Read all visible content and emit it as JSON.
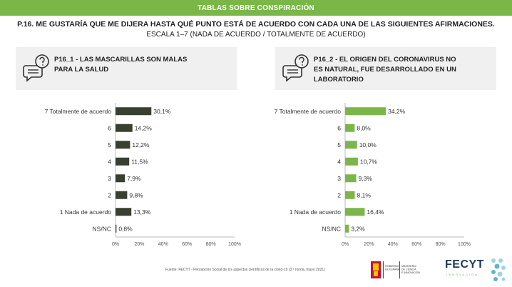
{
  "header": {
    "title": "TABLAS SOBRE CONSPIRACIÓN"
  },
  "question": {
    "text": "P.16. ME GUSTARÍA QUE ME DIJERA HASTA QUÉ PUNTO ESTÁ DE ACUERDO CON CADA UNA DE LAS SIGUIENTES AFIRMACIONES.",
    "scale": "ESCALA 1–7 (NADA DE ACUERDO / TOTALMENTE DE ACUERDO)"
  },
  "panels": [
    {
      "line1": "P16_1 -  LAS MASCARILLAS SON MALAS",
      "line2": "PARA LA SALUD",
      "line3": ""
    },
    {
      "line1": "P16_2 -  EL ORIGEN DEL CORONAVIRUS NO",
      "line2": "ES NATURAL, FUE DESARROLLADO EN UN",
      "line3": "LABORATORIO"
    }
  ],
  "colors": {
    "accent": "#7ab648",
    "dark_bar": "#3a4030",
    "green_bar": "#7ab648",
    "box_bg": "#f0f0f0"
  },
  "chart_data": [
    {
      "type": "bar",
      "orientation": "horizontal",
      "categories": [
        "7 Totalmente de acuerdo",
        "6",
        "5",
        "4",
        "3",
        "2",
        "1 Nada de acuerdo",
        "NS/NC"
      ],
      "values": [
        30.1,
        14.2,
        12.2,
        11.5,
        7.9,
        9.8,
        13.3,
        0.8
      ],
      "labels": [
        "30,1%",
        "14,2%",
        "12,2%",
        "11,5%",
        "7,9%",
        "9,8%",
        "13,3%",
        "0,8%"
      ],
      "xlim": [
        0,
        100
      ],
      "xticks": [
        "0%",
        "20%",
        "40%",
        "60%",
        "80%",
        "100%"
      ],
      "color": "#3a4030"
    },
    {
      "type": "bar",
      "orientation": "horizontal",
      "categories": [
        "7 Totalmente de acuerdo",
        "6",
        "5",
        "4",
        "3",
        "2",
        "1 Nada de acuerdo",
        "NS/NC"
      ],
      "values": [
        34.2,
        8.0,
        10.0,
        10.7,
        9.3,
        8.1,
        16.4,
        3.2
      ],
      "labels": [
        "34,2%",
        "8,0%",
        "10,0%",
        "10,7%",
        "9,3%",
        "8,1%",
        "16,4%",
        "3,2%"
      ],
      "xlim": [
        0,
        100
      ],
      "xticks": [
        "0%",
        "20%",
        "40%",
        "60%",
        "80%",
        "100%"
      ],
      "color": "#7ab648"
    }
  ],
  "footer": {
    "source": "Fuente: FECYT - Percepción Social de los aspectos científicos de la covid-19 (3.ª ronda, mayo 2021)",
    "gov_line1": "GOBIERNO",
    "gov_line2": "DE ESPAÑA",
    "ministry_line1": "MINISTERIO",
    "ministry_line2": "DE CIENCIA",
    "ministry_line3": "E INNOVACIÓN",
    "brand": "FECYT",
    "brand_sub": "INNOVACIÓN"
  }
}
